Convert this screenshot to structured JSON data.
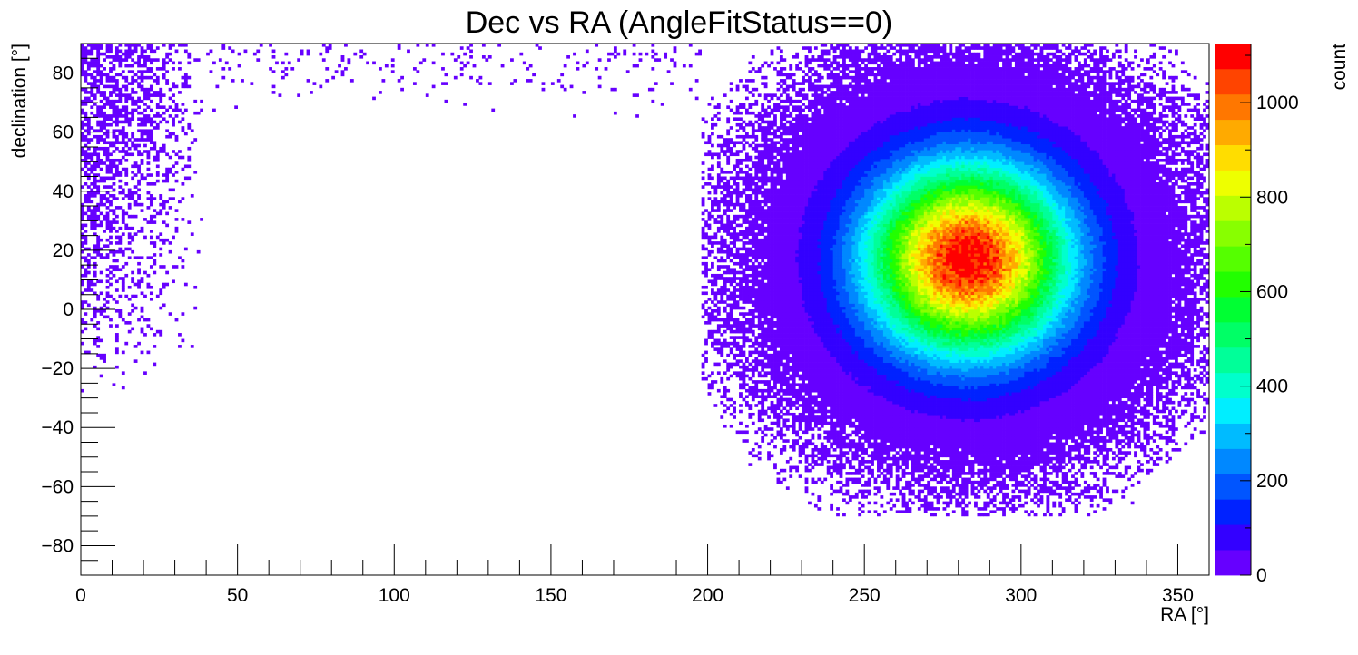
{
  "chart_data": {
    "type": "heatmap",
    "title": "Dec vs RA (AngleFitStatus==0)",
    "xlabel": "RA [°]",
    "ylabel": "declination [°]",
    "zlabel": "count",
    "xlim": [
      0,
      360
    ],
    "ylim": [
      -90,
      90
    ],
    "zlim": [
      0,
      1125
    ],
    "x_ticks": [
      0,
      50,
      100,
      150,
      200,
      250,
      300,
      350
    ],
    "x_tick_labels": [
      "0",
      "50",
      "100",
      "150",
      "200",
      "250",
      "300",
      "350"
    ],
    "y_ticks": [
      -80,
      -60,
      -40,
      -20,
      0,
      20,
      40,
      60,
      80
    ],
    "y_tick_labels": [
      "−80",
      "−60",
      "−40",
      "−20",
      "0",
      "20",
      "40",
      "60",
      "80"
    ],
    "z_ticks": [
      0,
      200,
      400,
      600,
      800,
      1000
    ],
    "z_tick_labels": [
      "0",
      "200",
      "400",
      "600",
      "800",
      "1000"
    ],
    "grid": false,
    "palette": [
      "#6600ff",
      "#3300ff",
      "#0022ff",
      "#0055ff",
      "#0088ff",
      "#00bbff",
      "#00eeff",
      "#00ffcc",
      "#00ff99",
      "#00ff66",
      "#00ff33",
      "#22ff00",
      "#55ff00",
      "#88ff00",
      "#bbff00",
      "#eeff00",
      "#ffdd00",
      "#ffaa00",
      "#ff7700",
      "#ff4400",
      "#ff0000"
    ],
    "distribution": {
      "component": "gaussian peak",
      "peak_count": 1120,
      "center_ra": 283,
      "center_dec": 17,
      "sigma_ra": 22,
      "sigma_dec": 22,
      "occupied_region": {
        "ra_range": [
          198,
          360
        ],
        "dec_range": [
          -70,
          90
        ]
      },
      "wrapped_region": {
        "ra_range": [
          0,
          40
        ],
        "dec_range": [
          -30,
          90
        ]
      },
      "high_dec_band": {
        "ra_range": [
          0,
          360
        ],
        "dec_range": [
          65,
          90
        ]
      }
    }
  }
}
